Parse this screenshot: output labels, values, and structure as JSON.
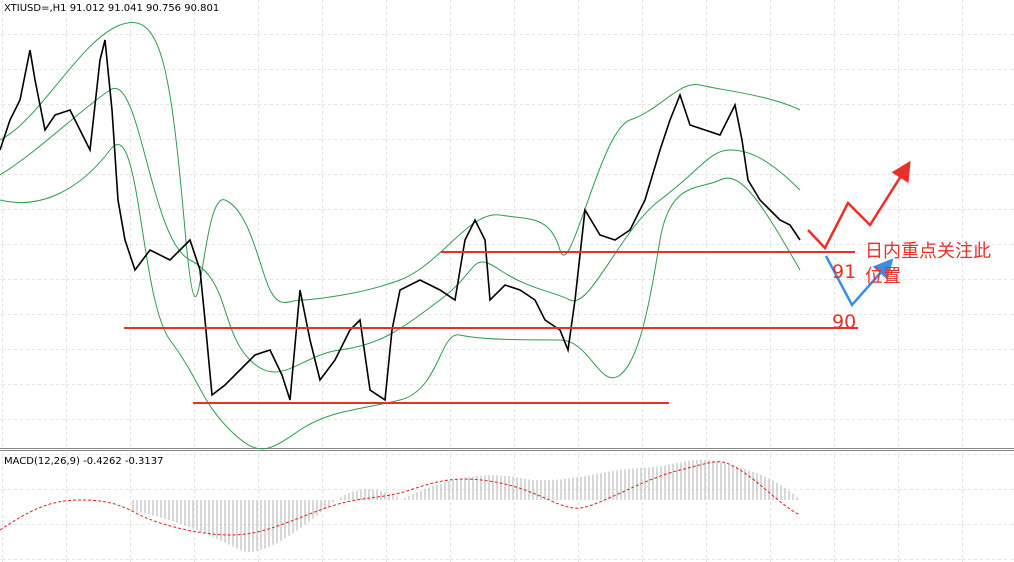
{
  "header": {
    "symbol_info": "XTIUSD=,H1  91.012 91.041 90.756 90.801"
  },
  "indicator": {
    "label": "MACD(12,26,9) -0.4262 -0.3137"
  },
  "annotations": {
    "level_high": "91",
    "level_low": "90",
    "note_lines": [
      "日内重点关注此",
      "位置"
    ]
  }
}
